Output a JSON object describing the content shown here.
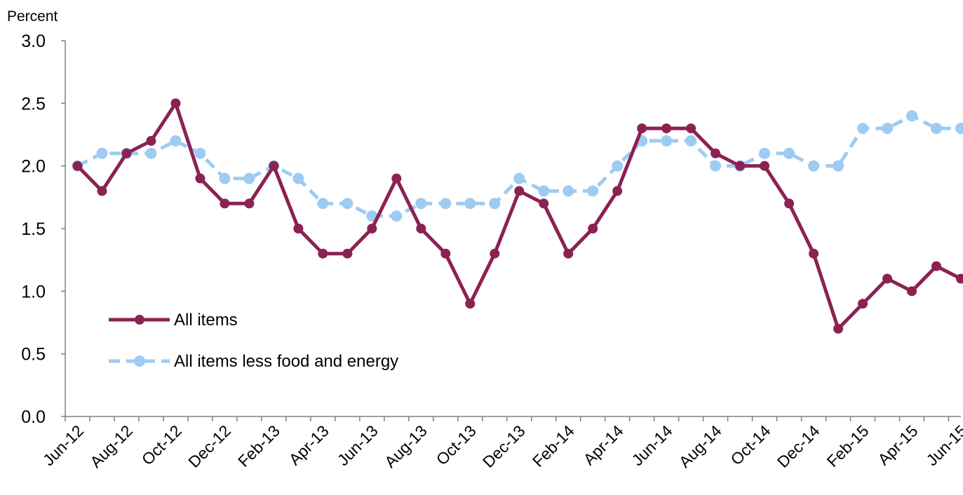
{
  "chart_data": {
    "type": "line",
    "title": "",
    "xlabel": "",
    "ylabel": "Percent",
    "ylim": [
      0,
      3
    ],
    "yticks": [
      "0.0",
      "0.5",
      "1.0",
      "1.5",
      "2.0",
      "2.5",
      "3.0"
    ],
    "x": [
      "Jun-12",
      "Jul-12",
      "Aug-12",
      "Sep-12",
      "Oct-12",
      "Nov-12",
      "Dec-12",
      "Jan-13",
      "Feb-13",
      "Mar-13",
      "Apr-13",
      "May-13",
      "Jun-13",
      "Jul-13",
      "Aug-13",
      "Sep-13",
      "Oct-13",
      "Nov-13",
      "Dec-13",
      "Jan-14",
      "Feb-14",
      "Mar-14",
      "Apr-14",
      "May-14",
      "Jun-14",
      "Jul-14",
      "Aug-14",
      "Sep-14",
      "Oct-14",
      "Nov-14",
      "Dec-14",
      "Jan-15",
      "Feb-15",
      "Mar-15",
      "Apr-15",
      "May-15",
      "Jun-15"
    ],
    "x_tick_labels": [
      "Jun-12",
      "Aug-12",
      "Oct-12",
      "Dec-12",
      "Feb-13",
      "Apr-13",
      "Jun-13",
      "Aug-13",
      "Oct-13",
      "Dec-13",
      "Feb-14",
      "Apr-14",
      "Jun-14",
      "Aug-14",
      "Oct-14",
      "Dec-14",
      "Feb-15",
      "Apr-15",
      "Jun-15"
    ],
    "grid": false,
    "legend_position": "lower-left",
    "series": [
      {
        "name": "All items",
        "color": "#8b2252",
        "style": "solid",
        "values": [
          2.0,
          1.8,
          2.1,
          2.2,
          2.5,
          1.9,
          1.7,
          1.7,
          2.0,
          1.5,
          1.3,
          1.3,
          1.5,
          1.9,
          1.5,
          1.3,
          0.9,
          1.3,
          1.8,
          1.7,
          1.3,
          1.5,
          1.8,
          2.3,
          2.3,
          2.3,
          2.1,
          2.0,
          2.0,
          1.7,
          1.3,
          0.7,
          0.9,
          1.1,
          1.0,
          1.2,
          1.1
        ]
      },
      {
        "name": "All items less food and energy",
        "color": "#9ecbf2",
        "style": "dashed",
        "values": [
          2.0,
          2.1,
          2.1,
          2.1,
          2.2,
          2.1,
          1.9,
          1.9,
          2.0,
          1.9,
          1.7,
          1.7,
          1.6,
          1.6,
          1.7,
          1.7,
          1.7,
          1.7,
          1.9,
          1.8,
          1.8,
          1.8,
          2.0,
          2.2,
          2.2,
          2.2,
          2.0,
          2.0,
          2.1,
          2.1,
          2.0,
          2.0,
          2.3,
          2.3,
          2.4,
          2.3,
          2.3
        ]
      }
    ]
  }
}
